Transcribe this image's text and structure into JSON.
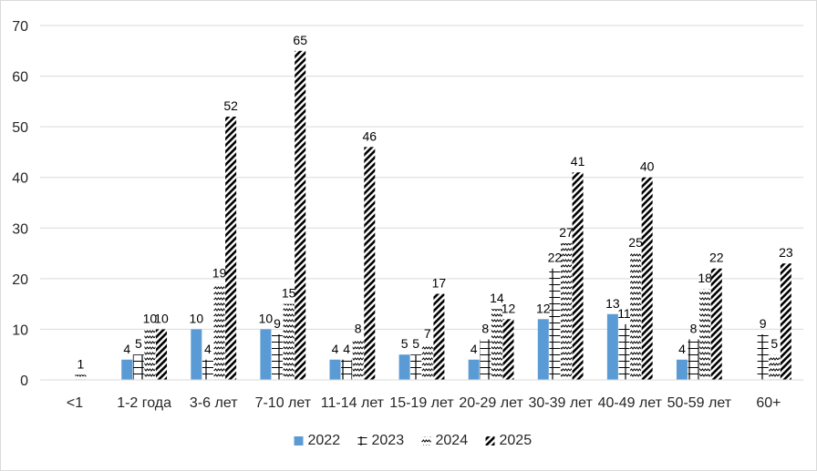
{
  "chart_data": {
    "type": "bar",
    "categories": [
      "<1",
      "1-2 года",
      "3-6 лет",
      "7-10 лет",
      "11-14 лет",
      "15-19 лет",
      "20-29 лет",
      "30-39 лет",
      "40-49 лет",
      "50-59 лет",
      "60+"
    ],
    "series": [
      {
        "name": "2022",
        "pattern": "solid",
        "color": "#5b9bd5",
        "values": [
          null,
          4,
          10,
          10,
          4,
          5,
          4,
          12,
          13,
          4,
          null
        ]
      },
      {
        "name": "2023",
        "pattern": "cross",
        "color": "#000000",
        "values": [
          null,
          5,
          4,
          9,
          4,
          5,
          8,
          22,
          11,
          8,
          9
        ]
      },
      {
        "name": "2024",
        "pattern": "zigzag",
        "color": "#000000",
        "values": [
          1,
          10,
          19,
          15,
          8,
          7,
          14,
          27,
          25,
          18,
          5
        ]
      },
      {
        "name": "2025",
        "pattern": "wide-diagonal",
        "color": "#000000",
        "values": [
          null,
          10,
          52,
          65,
          46,
          17,
          12,
          41,
          40,
          22,
          23
        ]
      }
    ],
    "ylim": [
      0,
      70
    ],
    "yticks": [
      0,
      10,
      20,
      30,
      40,
      50,
      60,
      70
    ],
    "grid": true,
    "legend_position": "bottom",
    "title": "",
    "xlabel": "",
    "ylabel": ""
  }
}
